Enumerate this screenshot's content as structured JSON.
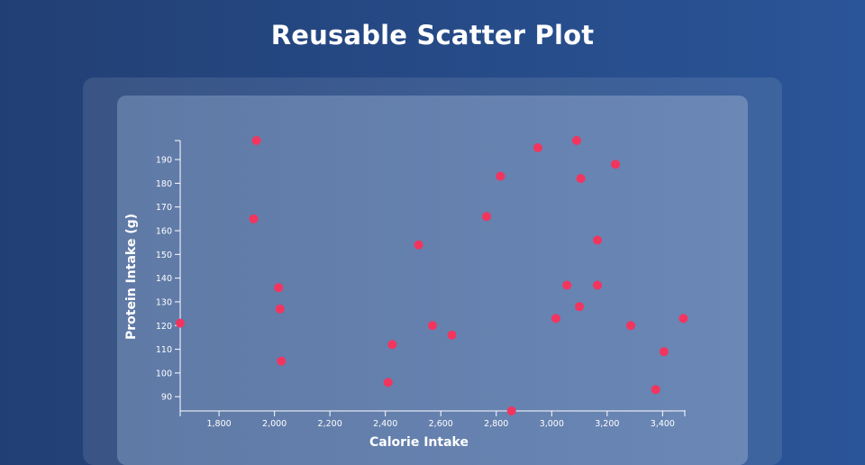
{
  "header": {
    "title": "Reusable Scatter Plot"
  },
  "chart_data": {
    "type": "scatter",
    "title": "Reusable Scatter Plot",
    "xlabel": "Calorie Intake",
    "ylabel": "Protein Intake (g)",
    "xlim": [
      1660,
      3480
    ],
    "ylim": [
      84,
      198
    ],
    "x_ticks": [
      1800,
      2000,
      2200,
      2400,
      2600,
      2800,
      3000,
      3200,
      3400
    ],
    "x_tick_labels": [
      "1,800",
      "2,000",
      "2,200",
      "2,400",
      "2,600",
      "2,800",
      "3,000",
      "3,200",
      "3,400"
    ],
    "y_ticks": [
      90,
      100,
      110,
      120,
      130,
      140,
      150,
      160,
      170,
      180,
      190
    ],
    "y_tick_labels": [
      "90",
      "100",
      "110",
      "120",
      "130",
      "140",
      "150",
      "160",
      "170",
      "180",
      "190"
    ],
    "grid": false,
    "point_color": "#f2355f",
    "points": [
      {
        "x": 1660,
        "y": 121
      },
      {
        "x": 1925,
        "y": 165
      },
      {
        "x": 1935,
        "y": 198
      },
      {
        "x": 2015,
        "y": 136
      },
      {
        "x": 2020,
        "y": 127
      },
      {
        "x": 2025,
        "y": 105
      },
      {
        "x": 2410,
        "y": 96
      },
      {
        "x": 2425,
        "y": 112
      },
      {
        "x": 2520,
        "y": 154
      },
      {
        "x": 2570,
        "y": 120
      },
      {
        "x": 2640,
        "y": 116
      },
      {
        "x": 2765,
        "y": 166
      },
      {
        "x": 2815,
        "y": 183
      },
      {
        "x": 2855,
        "y": 84
      },
      {
        "x": 2950,
        "y": 195
      },
      {
        "x": 3015,
        "y": 123
      },
      {
        "x": 3055,
        "y": 137
      },
      {
        "x": 3090,
        "y": 198
      },
      {
        "x": 3100,
        "y": 128
      },
      {
        "x": 3105,
        "y": 182
      },
      {
        "x": 3165,
        "y": 156
      },
      {
        "x": 3165,
        "y": 137
      },
      {
        "x": 3230,
        "y": 188
      },
      {
        "x": 3285,
        "y": 120
      },
      {
        "x": 3375,
        "y": 93
      },
      {
        "x": 3405,
        "y": 109
      },
      {
        "x": 3475,
        "y": 123
      }
    ]
  }
}
